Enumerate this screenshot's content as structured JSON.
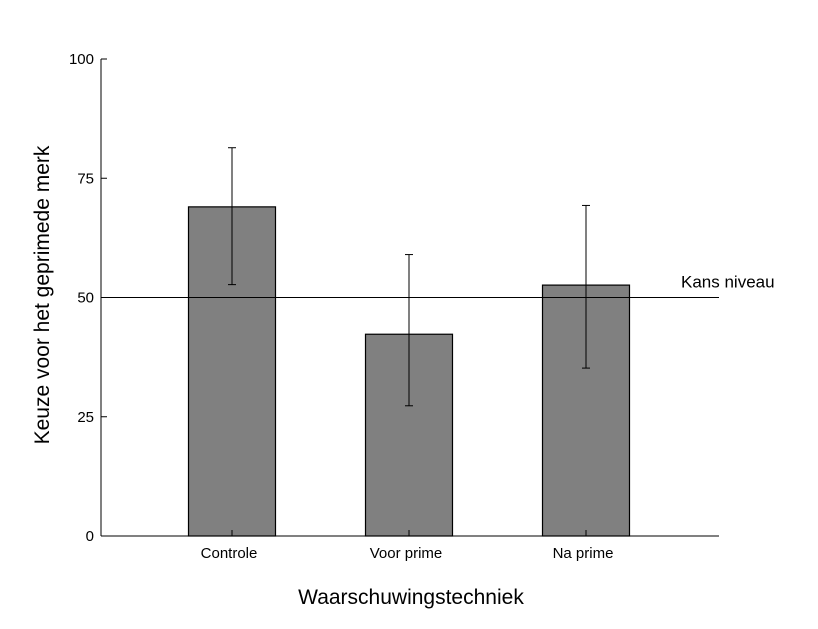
{
  "chart_data": {
    "type": "bar",
    "title": "",
    "xlabel": "Waarschuwingstechniek",
    "ylabel": "Keuze voor het geprimede merk",
    "categories": [
      "Controle",
      "Voor prime",
      "Na prime"
    ],
    "values": [
      69,
      42.3,
      52.6
    ],
    "error_low": [
      52.7,
      27.3,
      35.2
    ],
    "error_high": [
      81.4,
      59,
      69.3
    ],
    "ylim": [
      0,
      100
    ],
    "yticks": [
      "0",
      "25",
      "50",
      "75",
      "100"
    ],
    "ytick_values": [
      0,
      25,
      50,
      75,
      100
    ],
    "reference_line": {
      "value": 50,
      "label": "Kans niveau"
    },
    "bar_color": "#808080",
    "grid": false,
    "legend": "none"
  }
}
